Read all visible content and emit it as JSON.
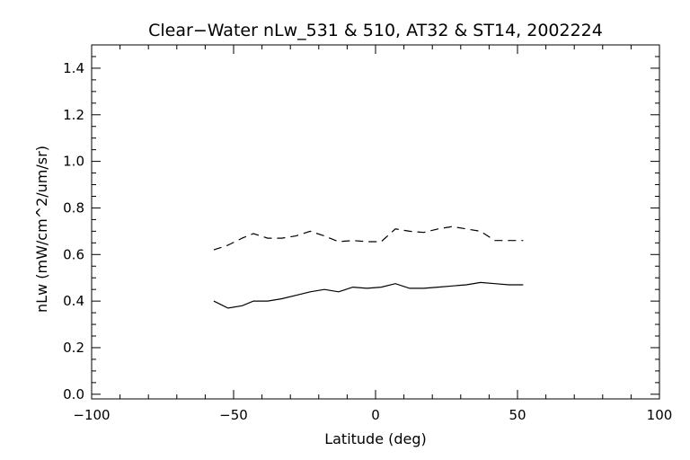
{
  "chart_data": {
    "type": "line",
    "title": "Clear−Water nLw_531 & 510, AT32 & ST14, 2002224",
    "xlabel": "Latitude (deg)",
    "ylabel": "nLw (mW/cm^2/um/sr)",
    "xlim": [
      -100,
      100
    ],
    "ylim": [
      -0.02,
      1.5
    ],
    "x_ticks": [
      -100,
      -50,
      0,
      50,
      100
    ],
    "x_tick_labels": [
      "−100",
      "−50",
      "0",
      "50",
      "100"
    ],
    "y_ticks": [
      0.0,
      0.2,
      0.4,
      0.6,
      0.8,
      1.0,
      1.2,
      1.4
    ],
    "y_tick_labels": [
      "0.0",
      "0.2",
      "0.4",
      "0.6",
      "0.8",
      "1.0",
      "1.2",
      "1.4"
    ],
    "grid": false,
    "series": [
      {
        "style": "dashed",
        "x": [
          -57,
          -52,
          -47,
          -43,
          -38,
          -33,
          -28,
          -23,
          -18,
          -13,
          -8,
          -3,
          2,
          7,
          12,
          17,
          22,
          27,
          32,
          37,
          42,
          47,
          52
        ],
        "y": [
          0.62,
          0.64,
          0.67,
          0.69,
          0.67,
          0.67,
          0.68,
          0.7,
          0.68,
          0.655,
          0.66,
          0.655,
          0.655,
          0.71,
          0.7,
          0.695,
          0.71,
          0.72,
          0.71,
          0.7,
          0.66,
          0.66,
          0.66
        ]
      },
      {
        "style": "solid",
        "x": [
          -57,
          -52,
          -47,
          -43,
          -38,
          -33,
          -28,
          -23,
          -18,
          -13,
          -8,
          -3,
          2,
          7,
          12,
          17,
          22,
          27,
          32,
          37,
          42,
          47,
          52
        ],
        "y": [
          0.4,
          0.37,
          0.38,
          0.4,
          0.4,
          0.41,
          0.425,
          0.44,
          0.45,
          0.44,
          0.46,
          0.455,
          0.46,
          0.475,
          0.455,
          0.455,
          0.46,
          0.465,
          0.47,
          0.48,
          0.475,
          0.47,
          0.47
        ]
      }
    ]
  }
}
